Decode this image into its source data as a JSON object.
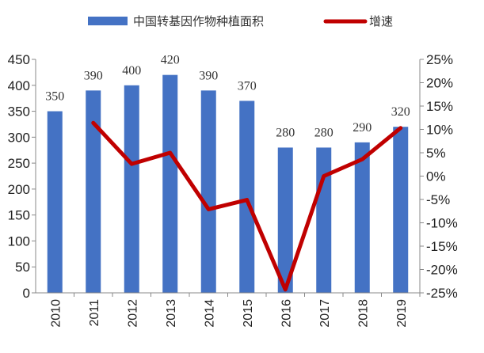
{
  "chart_data": {
    "type": "bar+line",
    "categories": [
      "2010",
      "2011",
      "2012",
      "2013",
      "2014",
      "2015",
      "2016",
      "2017",
      "2018",
      "2019"
    ],
    "series": [
      {
        "name": "中国转基因作物种植面积",
        "type": "bar",
        "axis": "left",
        "color": "#4472C4",
        "values": [
          350,
          390,
          400,
          420,
          390,
          370,
          280,
          280,
          290,
          320
        ],
        "labels": [
          "350",
          "390",
          "400",
          "420",
          "390",
          "370",
          "280",
          "280",
          "290",
          "320"
        ]
      },
      {
        "name": "增速",
        "type": "line",
        "axis": "right",
        "color": "#C00000",
        "values": [
          null,
          11.4,
          2.6,
          5.0,
          -7.1,
          -5.1,
          -24.3,
          0.0,
          3.6,
          10.3
        ]
      }
    ],
    "left_axis": {
      "min": 0,
      "max": 450,
      "ticks": [
        "0",
        "50",
        "100",
        "150",
        "200",
        "250",
        "300",
        "350",
        "400",
        "450"
      ]
    },
    "right_axis": {
      "min": -25,
      "max": 25,
      "ticks": [
        "-25%",
        "-20%",
        "-15%",
        "-10%",
        "-5%",
        "0%",
        "5%",
        "10%",
        "15%",
        "20%",
        "25%"
      ]
    },
    "legend_position": "top",
    "grid": false
  }
}
